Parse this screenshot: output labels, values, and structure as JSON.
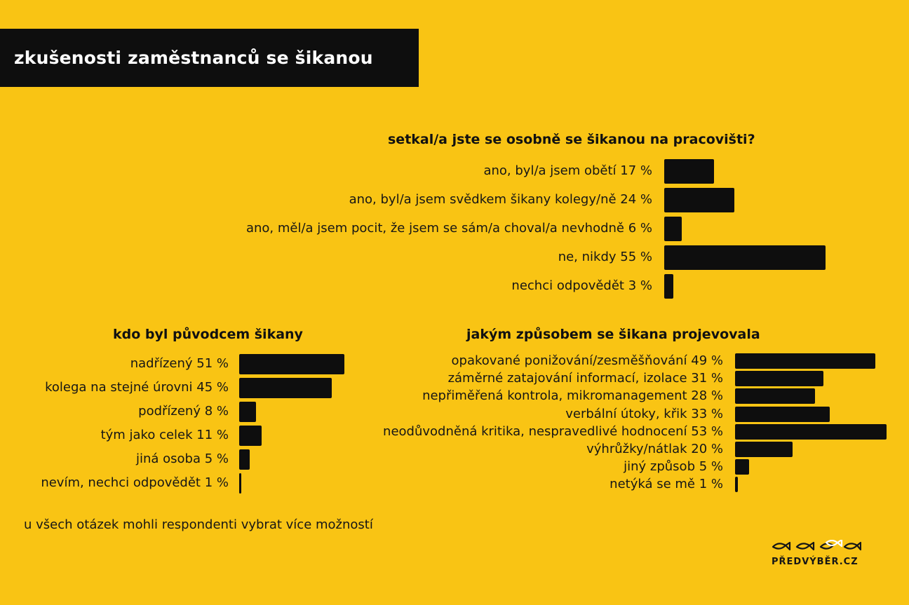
{
  "title": "zkušenosti zaměstnanců se šikanou",
  "footnote": "u všech otázek mohli respondenti vybrat více možností",
  "logo": {
    "text": "PŘEDVÝBĚR.CZ",
    "icon": "fish-logo-icon"
  },
  "colors": {
    "background": "#F9C414",
    "bar": "#0E0E0E",
    "title_box": "#0E0E0E"
  },
  "chart_data": [
    {
      "type": "bar",
      "orientation": "horizontal",
      "title": "setkal/a jste se osobně se šikanou na pracovišti?",
      "categories": [
        "ano, byl/a jsem obětí 17 %",
        "ano, byl/a jsem svědkem šikany kolegy/ně 24 %",
        "ano, měl/a jsem pocit, že jsem se sám/a choval/a nevhodně 6 %",
        "ne, nikdy 55 %",
        "nechci odpovědět 3 %"
      ],
      "values": [
        17,
        24,
        6,
        55,
        3
      ],
      "unit": "%"
    },
    {
      "type": "bar",
      "orientation": "horizontal",
      "title": "kdo byl původcem šikany",
      "categories": [
        "nadřízený 51 %",
        "kolega na stejné úrovni 45 %",
        "podřízený 8 %",
        "tým jako celek 11 %",
        "jiná osoba 5 %",
        "nevím, nechci odpovědět 1 %"
      ],
      "values": [
        51,
        45,
        8,
        11,
        5,
        1
      ],
      "unit": "%"
    },
    {
      "type": "bar",
      "orientation": "horizontal",
      "title": "jakým způsobem se šikana projevovala",
      "categories": [
        "opakované ponižování/zesměšňování 49 %",
        "záměrné zatajování informací, izolace 31 %",
        "nepřiměřená kontrola, mikromanagement 28 %",
        "verbální útoky, křik 33 %",
        "neodůvodněná kritika, nespravedlivé hodnocení 53 %",
        "výhrůžky/nátlak 20 %",
        "jiný způsob 5 %",
        "netýká se mě 1 %"
      ],
      "values": [
        49,
        31,
        28,
        33,
        53,
        20,
        5,
        1
      ],
      "unit": "%"
    }
  ]
}
